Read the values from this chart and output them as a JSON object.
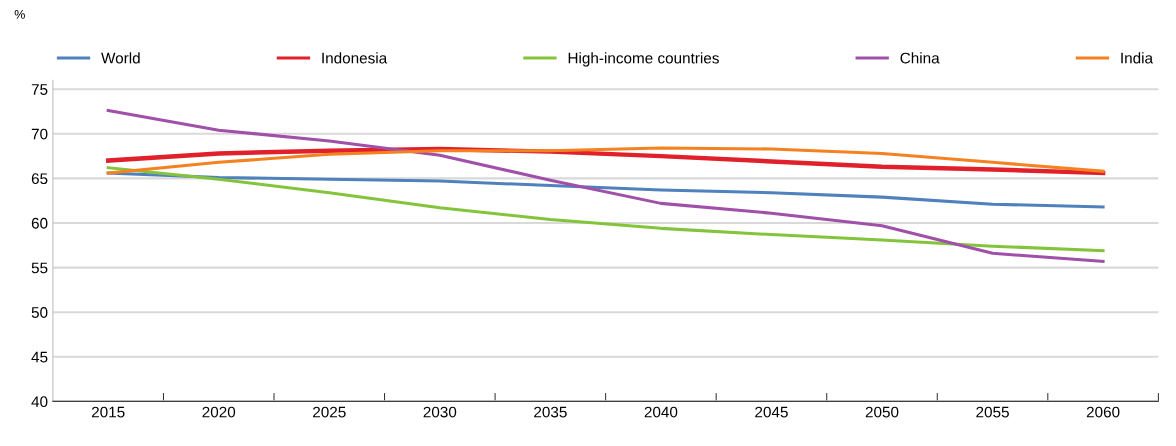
{
  "chart_data": {
    "type": "line",
    "ylabel": "%",
    "categories": [
      "2015",
      "2020",
      "2025",
      "2030",
      "2035",
      "2040",
      "2045",
      "2050",
      "2055",
      "2060"
    ],
    "series": [
      {
        "name": "World",
        "color": "#4f81bd",
        "values": [
          65.6,
          65.1,
          64.9,
          64.7,
          64.2,
          63.7,
          63.4,
          62.9,
          62.1,
          61.8
        ]
      },
      {
        "name": "Indonesia",
        "color": "#e0202a",
        "values": [
          67.0,
          67.8,
          68.1,
          68.3,
          68.0,
          67.5,
          66.9,
          66.3,
          66.0,
          65.6
        ]
      },
      {
        "name": "High-income countries",
        "color": "#84c43c",
        "values": [
          66.2,
          64.9,
          63.4,
          61.7,
          60.4,
          59.4,
          58.7,
          58.1,
          57.4,
          56.9
        ]
      },
      {
        "name": "China",
        "color": "#a050a8",
        "values": [
          72.6,
          70.4,
          69.2,
          67.6,
          64.8,
          62.2,
          61.1,
          59.7,
          56.6,
          55.7
        ]
      },
      {
        "name": "India",
        "color": "#f58220",
        "values": [
          65.6,
          66.8,
          67.7,
          68.1,
          68.1,
          68.4,
          68.3,
          67.8,
          66.8,
          65.8
        ]
      }
    ],
    "ylim": [
      40,
      76
    ],
    "yticks": [
      40,
      45,
      50,
      55,
      60,
      65,
      70,
      75
    ],
    "grid": "y",
    "legend": "top",
    "marker": "none",
    "line_style": "solid"
  }
}
